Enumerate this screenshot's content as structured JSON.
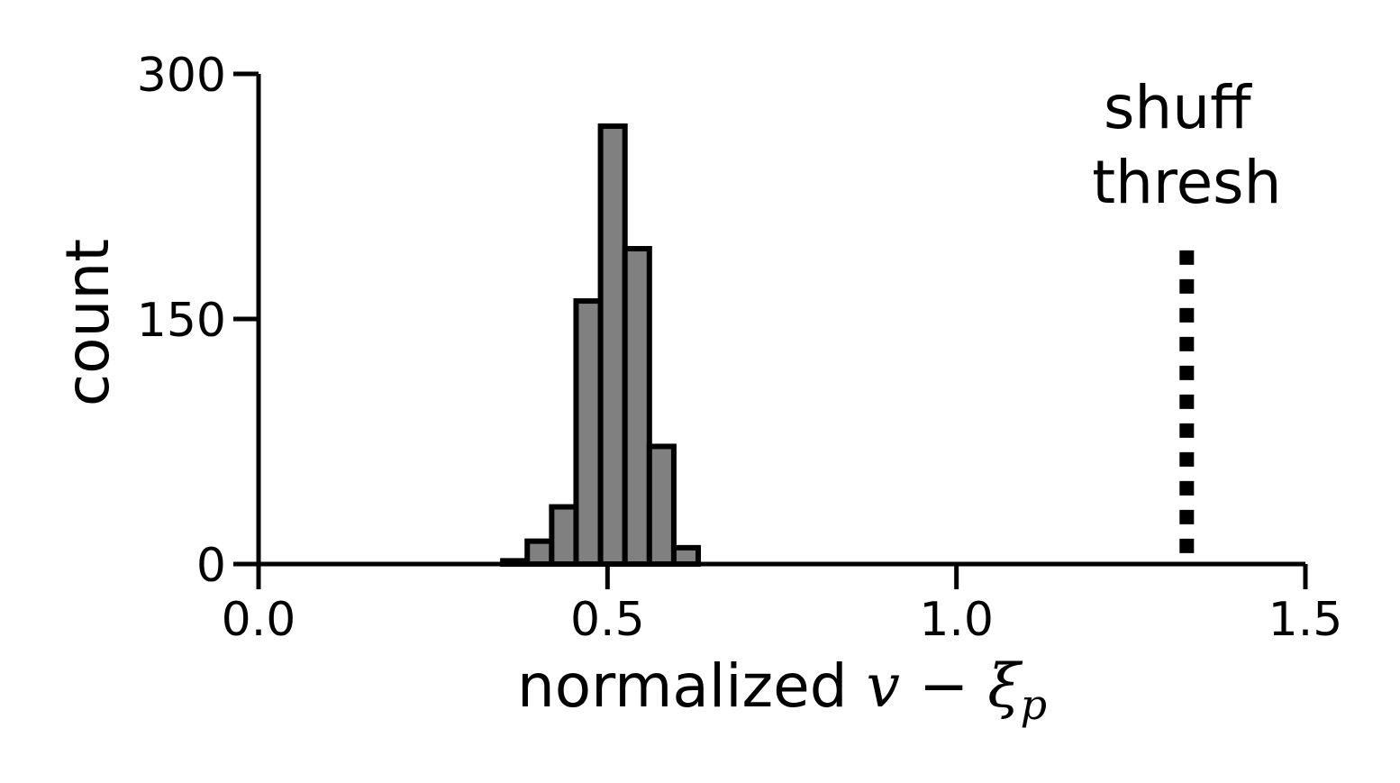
{
  "chart_data": {
    "type": "bar",
    "subtype": "histogram",
    "xlabel": {
      "prefix": "normalized",
      "var": "v",
      "op": "−",
      "greek": "ξ",
      "sub": "p"
    },
    "ylabel": "count",
    "xlim": [
      0.0,
      1.5
    ],
    "ylim": [
      0,
      300
    ],
    "x_ticks": [
      0.0,
      0.5,
      1.0,
      1.5
    ],
    "x_tick_labels": [
      "0.0",
      "0.5",
      "1.0",
      "1.5"
    ],
    "y_ticks": [
      0,
      150,
      300
    ],
    "y_tick_labels": [
      "0",
      "150",
      "300"
    ],
    "bin_edges": [
      0.0,
      0.035,
      0.07,
      0.105,
      0.14,
      0.175,
      0.21,
      0.245,
      0.28,
      0.315,
      0.35,
      0.385,
      0.42,
      0.455,
      0.49,
      0.525,
      0.56,
      0.595,
      0.63,
      0.665,
      0.7,
      0.735,
      0.77,
      0.805,
      0.84,
      0.875,
      0.91,
      0.945,
      0.98,
      1.0
    ],
    "counts": [
      0,
      0,
      0,
      0,
      0,
      0,
      0,
      0,
      0,
      0,
      2,
      14,
      35,
      161,
      268,
      193,
      72,
      10,
      0,
      0,
      0,
      0,
      0,
      0,
      0,
      0,
      0,
      0,
      0
    ],
    "bar_fill": "#808080",
    "bar_edge": "#000000",
    "threshold": {
      "x": 1.33,
      "y_top": 192,
      "label_lines": [
        "shuff",
        "thresh"
      ],
      "line_style": "dotted",
      "color": "#000000"
    },
    "grid": false,
    "legend": "none"
  }
}
